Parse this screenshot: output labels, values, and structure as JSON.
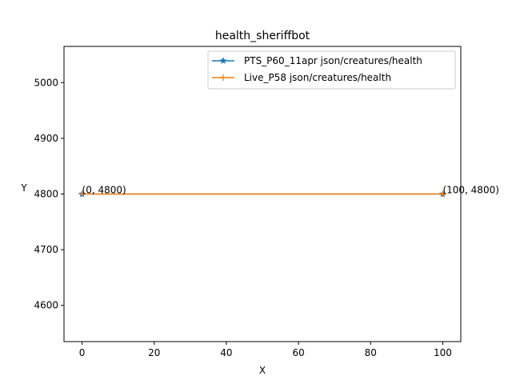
{
  "chart_data": {
    "type": "line",
    "title": "health_sheriffbot",
    "xlabel": "X",
    "ylabel": "Y",
    "xlim": [
      -5,
      105
    ],
    "ylim": [
      4535,
      5065
    ],
    "xticks": [
      0,
      20,
      40,
      60,
      80,
      100
    ],
    "yticks": [
      4600,
      4700,
      4800,
      4900,
      5000
    ],
    "legend_position": "top-right",
    "grid": false,
    "series": [
      {
        "name": "PTS_P60_11apr json/creatures/health",
        "x": [
          0,
          100
        ],
        "y": [
          4800,
          4800
        ],
        "color": "#1f77b4",
        "marker": "star"
      },
      {
        "name": "Live_P58 json/creatures/health",
        "x": [
          0,
          100
        ],
        "y": [
          4800,
          4800
        ],
        "color": "#ff7f0e",
        "marker": "plus"
      }
    ],
    "annotations": [
      {
        "text": "(0, 4800)",
        "x": 0,
        "y": 4800
      },
      {
        "text": "(100, 4800)",
        "x": 100,
        "y": 4800
      }
    ]
  }
}
